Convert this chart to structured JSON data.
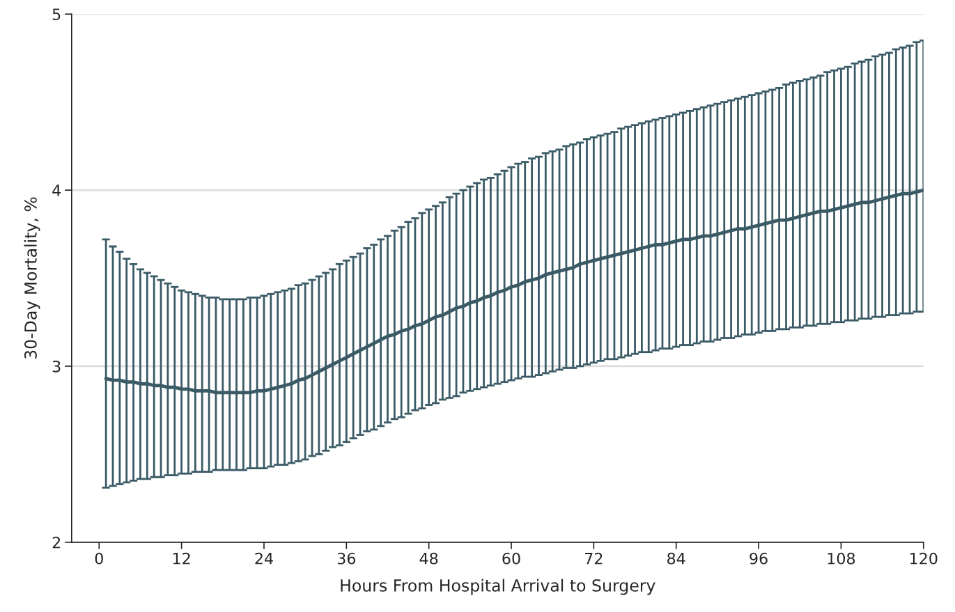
{
  "chart_data": {
    "type": "line",
    "xlabel": "Hours From Hospital Arrival to Surgery",
    "ylabel": "30-Day Mortality, %",
    "xlim": [
      -4,
      120
    ],
    "xticks": [
      0,
      12,
      24,
      36,
      48,
      60,
      72,
      84,
      96,
      108,
      120
    ],
    "ylim": [
      2,
      5
    ],
    "yticks": [
      2,
      3,
      4,
      5
    ],
    "grid": "y",
    "marker": "none",
    "line_style": "solid",
    "x": [
      1,
      2,
      3,
      4,
      5,
      6,
      7,
      8,
      9,
      10,
      11,
      12,
      13,
      14,
      15,
      16,
      17,
      18,
      19,
      20,
      21,
      22,
      23,
      24,
      25,
      26,
      27,
      28,
      29,
      30,
      31,
      32,
      33,
      34,
      35,
      36,
      37,
      38,
      39,
      40,
      41,
      42,
      43,
      44,
      45,
      46,
      47,
      48,
      49,
      50,
      51,
      52,
      53,
      54,
      55,
      56,
      57,
      58,
      59,
      60,
      61,
      62,
      63,
      64,
      65,
      66,
      67,
      68,
      69,
      70,
      71,
      72,
      73,
      74,
      75,
      76,
      77,
      78,
      79,
      80,
      81,
      82,
      83,
      84,
      85,
      86,
      87,
      88,
      89,
      90,
      91,
      92,
      93,
      94,
      95,
      96,
      97,
      98,
      99,
      100,
      101,
      102,
      103,
      104,
      105,
      106,
      107,
      108,
      109,
      110,
      111,
      112,
      113,
      114,
      115,
      116,
      117,
      118,
      119,
      120
    ],
    "series": [
      {
        "color": "#3a5a66",
        "values": [
          2.93,
          2.92,
          2.92,
          2.91,
          2.91,
          2.9,
          2.9,
          2.89,
          2.89,
          2.88,
          2.88,
          2.87,
          2.87,
          2.86,
          2.86,
          2.86,
          2.85,
          2.85,
          2.85,
          2.85,
          2.85,
          2.85,
          2.86,
          2.86,
          2.87,
          2.88,
          2.89,
          2.9,
          2.92,
          2.93,
          2.95,
          2.97,
          2.99,
          3.01,
          3.03,
          3.05,
          3.07,
          3.09,
          3.11,
          3.13,
          3.15,
          3.17,
          3.18,
          3.2,
          3.21,
          3.23,
          3.24,
          3.26,
          3.28,
          3.29,
          3.31,
          3.33,
          3.34,
          3.36,
          3.37,
          3.39,
          3.4,
          3.42,
          3.43,
          3.45,
          3.46,
          3.48,
          3.49,
          3.5,
          3.52,
          3.53,
          3.54,
          3.55,
          3.56,
          3.58,
          3.59,
          3.6,
          3.61,
          3.62,
          3.63,
          3.64,
          3.65,
          3.66,
          3.67,
          3.68,
          3.69,
          3.69,
          3.7,
          3.71,
          3.72,
          3.72,
          3.73,
          3.74,
          3.74,
          3.75,
          3.76,
          3.77,
          3.78,
          3.78,
          3.79,
          3.8,
          3.81,
          3.82,
          3.83,
          3.83,
          3.84,
          3.85,
          3.86,
          3.87,
          3.88,
          3.88,
          3.89,
          3.9,
          3.91,
          3.92,
          3.93,
          3.93,
          3.94,
          3.95,
          3.96,
          3.97,
          3.98,
          3.98,
          3.99,
          4.0
        ],
        "errors": [
          [
            2.31,
            3.72
          ],
          [
            2.32,
            3.68
          ],
          [
            2.33,
            3.65
          ],
          [
            2.34,
            3.61
          ],
          [
            2.35,
            3.58
          ],
          [
            2.36,
            3.55
          ],
          [
            2.36,
            3.53
          ],
          [
            2.37,
            3.51
          ],
          [
            2.37,
            3.49
          ],
          [
            2.38,
            3.47
          ],
          [
            2.38,
            3.45
          ],
          [
            2.39,
            3.43
          ],
          [
            2.39,
            3.42
          ],
          [
            2.4,
            3.41
          ],
          [
            2.4,
            3.4
          ],
          [
            2.4,
            3.39
          ],
          [
            2.41,
            3.39
          ],
          [
            2.41,
            3.38
          ],
          [
            2.41,
            3.38
          ],
          [
            2.41,
            3.38
          ],
          [
            2.41,
            3.38
          ],
          [
            2.42,
            3.39
          ],
          [
            2.42,
            3.39
          ],
          [
            2.42,
            3.4
          ],
          [
            2.43,
            3.41
          ],
          [
            2.44,
            3.42
          ],
          [
            2.44,
            3.43
          ],
          [
            2.45,
            3.44
          ],
          [
            2.46,
            3.46
          ],
          [
            2.47,
            3.47
          ],
          [
            2.49,
            3.49
          ],
          [
            2.5,
            3.51
          ],
          [
            2.52,
            3.53
          ],
          [
            2.54,
            3.55
          ],
          [
            2.55,
            3.58
          ],
          [
            2.57,
            3.6
          ],
          [
            2.59,
            3.62
          ],
          [
            2.61,
            3.64
          ],
          [
            2.63,
            3.67
          ],
          [
            2.64,
            3.69
          ],
          [
            2.66,
            3.72
          ],
          [
            2.68,
            3.74
          ],
          [
            2.7,
            3.77
          ],
          [
            2.71,
            3.79
          ],
          [
            2.73,
            3.82
          ],
          [
            2.75,
            3.84
          ],
          [
            2.76,
            3.87
          ],
          [
            2.78,
            3.89
          ],
          [
            2.79,
            3.91
          ],
          [
            2.81,
            3.93
          ],
          [
            2.82,
            3.96
          ],
          [
            2.83,
            3.98
          ],
          [
            2.85,
            4.0
          ],
          [
            2.86,
            4.02
          ],
          [
            2.87,
            4.04
          ],
          [
            2.88,
            4.06
          ],
          [
            2.89,
            4.07
          ],
          [
            2.9,
            4.09
          ],
          [
            2.91,
            4.11
          ],
          [
            2.92,
            4.13
          ],
          [
            2.93,
            4.15
          ],
          [
            2.94,
            4.16
          ],
          [
            2.94,
            4.18
          ],
          [
            2.95,
            4.19
          ],
          [
            2.96,
            4.21
          ],
          [
            2.97,
            4.22
          ],
          [
            2.98,
            4.23
          ],
          [
            2.99,
            4.25
          ],
          [
            2.99,
            4.26
          ],
          [
            3.0,
            4.27
          ],
          [
            3.01,
            4.29
          ],
          [
            3.02,
            4.3
          ],
          [
            3.03,
            4.31
          ],
          [
            3.04,
            4.32
          ],
          [
            3.04,
            4.33
          ],
          [
            3.05,
            4.35
          ],
          [
            3.06,
            4.36
          ],
          [
            3.07,
            4.37
          ],
          [
            3.08,
            4.38
          ],
          [
            3.08,
            4.39
          ],
          [
            3.09,
            4.4
          ],
          [
            3.1,
            4.41
          ],
          [
            3.1,
            4.42
          ],
          [
            3.11,
            4.43
          ],
          [
            3.12,
            4.44
          ],
          [
            3.12,
            4.45
          ],
          [
            3.13,
            4.46
          ],
          [
            3.14,
            4.47
          ],
          [
            3.14,
            4.48
          ],
          [
            3.15,
            4.49
          ],
          [
            3.16,
            4.5
          ],
          [
            3.16,
            4.51
          ],
          [
            3.17,
            4.52
          ],
          [
            3.18,
            4.53
          ],
          [
            3.18,
            4.54
          ],
          [
            3.19,
            4.55
          ],
          [
            3.2,
            4.56
          ],
          [
            3.2,
            4.57
          ],
          [
            3.21,
            4.58
          ],
          [
            3.21,
            4.6
          ],
          [
            3.22,
            4.61
          ],
          [
            3.22,
            4.62
          ],
          [
            3.23,
            4.63
          ],
          [
            3.23,
            4.64
          ],
          [
            3.24,
            4.65
          ],
          [
            3.24,
            4.67
          ],
          [
            3.25,
            4.68
          ],
          [
            3.25,
            4.69
          ],
          [
            3.26,
            4.7
          ],
          [
            3.26,
            4.72
          ],
          [
            3.27,
            4.73
          ],
          [
            3.27,
            4.74
          ],
          [
            3.28,
            4.76
          ],
          [
            3.28,
            4.77
          ],
          [
            3.29,
            4.78
          ],
          [
            3.29,
            4.8
          ],
          [
            3.3,
            4.81
          ],
          [
            3.3,
            4.82
          ],
          [
            3.31,
            4.84
          ],
          [
            3.31,
            4.85
          ]
        ]
      }
    ]
  }
}
